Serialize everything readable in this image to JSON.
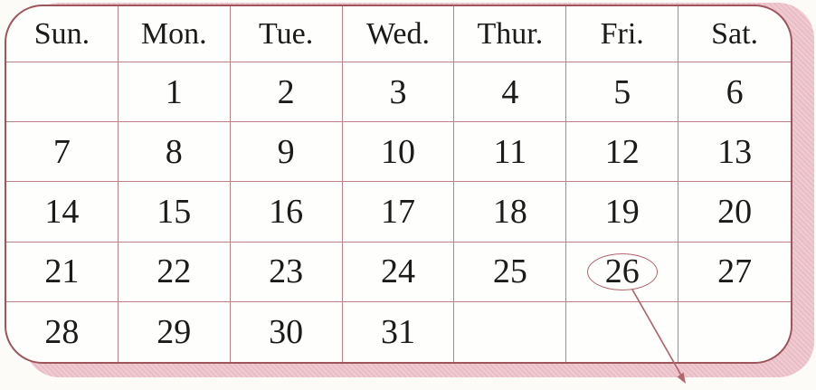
{
  "calendar": {
    "weekdays": [
      "Sun.",
      "Mon.",
      "Tue.",
      "Wed.",
      "Thur.",
      "Fri.",
      "Sat."
    ],
    "weeks": [
      [
        "",
        "1",
        "2",
        "3",
        "4",
        "5",
        "6"
      ],
      [
        "7",
        "8",
        "9",
        "10",
        "11",
        "12",
        "13"
      ],
      [
        "14",
        "15",
        "16",
        "17",
        "18",
        "19",
        "20"
      ],
      [
        "21",
        "22",
        "23",
        "24",
        "25",
        "26",
        "27"
      ],
      [
        "28",
        "29",
        "30",
        "31",
        "",
        "",
        ""
      ]
    ],
    "circled_day": "26",
    "circled_position": {
      "week": 3,
      "day": 5
    }
  },
  "annotation": {
    "type": "ellipse-with-arrow",
    "target_day": "26",
    "arrow_direction": "down-right"
  },
  "colors": {
    "table_border": "#9c565c",
    "grid_line": "#bd8287",
    "backdrop_pink": "#ecc3ca",
    "annotation_rose": "#b2666d",
    "text": "#1b1b1b"
  }
}
